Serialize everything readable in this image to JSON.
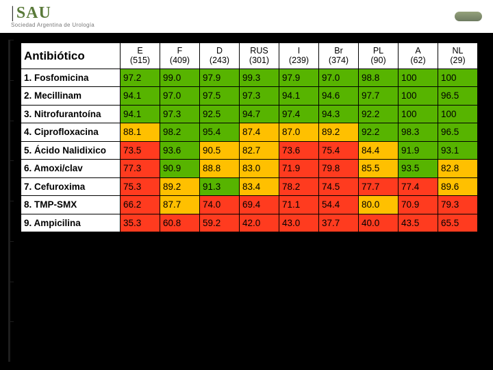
{
  "header": {
    "logo_main": "SAU",
    "logo_sub": "Sociedad Argentina de Urología"
  },
  "threshold": {
    "green_min": 90,
    "yellow_min": 80
  },
  "overrides": {
    "5": {
      "3": "yellow",
      "7": "yellow"
    },
    "6": {
      "5": "red"
    },
    "7": {
      "3": "green",
      "4": "yellow",
      "6": "red",
      "9": "yellow"
    },
    "8": {
      "2": "yellow",
      "3": "red",
      "5": "red",
      "7": "yellow",
      "8": "red",
      "9": "red"
    },
    "9": {
      "2": "red"
    }
  },
  "colors": {
    "green": "#57b400",
    "yellow": "#ffc000",
    "red": "#ff3b1f",
    "border": "#000000",
    "header_bg": "#ffffff"
  },
  "table": {
    "corner": "Antibiótico",
    "cols": [
      {
        "top": "E",
        "bot": "(515)"
      },
      {
        "top": "F",
        "bot": "(409)"
      },
      {
        "top": "D",
        "bot": "(243)"
      },
      {
        "top": "RUS",
        "bot": "(301)"
      },
      {
        "top": "I",
        "bot": "(239)"
      },
      {
        "top": "Br",
        "bot": "(374)"
      },
      {
        "top": "PL",
        "bot": "(90)"
      },
      {
        "top": "A",
        "bot": "(62)"
      },
      {
        "top": "NL",
        "bot": "(29)"
      }
    ],
    "rows": [
      {
        "label": "1. Fosfomicina",
        "vals": [
          "97.2",
          "99.0",
          "97.9",
          "99.3",
          "97.9",
          "97.0",
          "98.8",
          "100",
          "100"
        ]
      },
      {
        "label": "2. Mecillinam",
        "vals": [
          "94.1",
          "97.0",
          "97.5",
          "97.3",
          "94.1",
          "94.6",
          "97.7",
          "100",
          "96.5"
        ]
      },
      {
        "label": "3. Nitrofurantoína",
        "vals": [
          "94.1",
          "97.3",
          "92.5",
          "94.7",
          "97.4",
          "94.3",
          "92.2",
          "100",
          "100"
        ]
      },
      {
        "label": "4. Ciprofloxacina",
        "vals": [
          "88.1",
          "98.2",
          "95.4",
          "87.4",
          "87.0",
          "89.2",
          "92.2",
          "98.3",
          "96.5"
        ]
      },
      {
        "label": "5. Ácido Nalidixico",
        "vals": [
          "73.5",
          "93.6",
          "90.5",
          "82.7",
          "73.6",
          "75.4",
          "84.4",
          "91.9",
          "93.1"
        ]
      },
      {
        "label": "6. Amoxi/clav",
        "vals": [
          "77.3",
          "90.9",
          "88.8",
          "83.0",
          "71.9",
          "79.8",
          "85.5",
          "93.5",
          "82.8"
        ]
      },
      {
        "label": "7. Cefuroxima",
        "vals": [
          "75.3",
          "89.2",
          "91.3",
          "83.4",
          "78.2",
          "74.5",
          "77.7",
          "77.4",
          "89.6"
        ]
      },
      {
        "label": "8. TMP-SMX",
        "vals": [
          "66.2",
          "87.7",
          "74.0",
          "69.4",
          "71.1",
          "54.4",
          "80.0",
          "70.9",
          "79.3"
        ]
      },
      {
        "label": "9. Ampicilina",
        "vals": [
          "35.3",
          "60.8",
          "59.2",
          "42.0",
          "43.0",
          "37.7",
          "40.0",
          "43.5",
          "65.5"
        ]
      }
    ]
  }
}
